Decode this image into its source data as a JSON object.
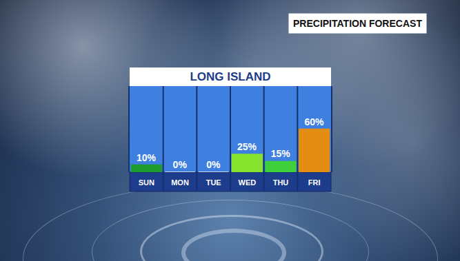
{
  "chart_data": {
    "type": "bar",
    "title": "LONG ISLAND",
    "subtitle": "PRECIPITATION FORECAST",
    "categories": [
      "SUN",
      "MON",
      "TUE",
      "WED",
      "THU",
      "FRI"
    ],
    "values": [
      10,
      0,
      0,
      25,
      15,
      60
    ],
    "value_labels": [
      "10%",
      "0%",
      "0%",
      "25%",
      "15%",
      "60%"
    ],
    "colors": [
      "#1f9a2e",
      "#ffffff",
      "#ffffff",
      "#86e22c",
      "#3fcf3a",
      "#e38d12"
    ],
    "ylim": [
      0,
      120
    ],
    "data_labels": true,
    "tick_labels": "x",
    "grid": false
  }
}
